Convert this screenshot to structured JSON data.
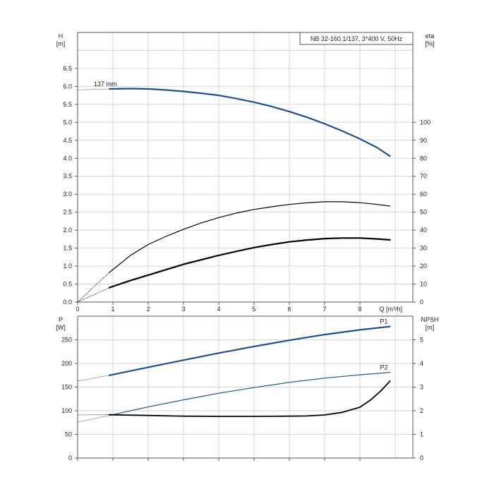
{
  "chart_data": [
    {
      "type": "line",
      "title": "NB 32-160.1/137, 3*400 V, 50Hz",
      "xlabel": "Q [m³/h]",
      "ylabel": [
        "H",
        "[m]"
      ],
      "ylabel_right": [
        "eta",
        "[%]"
      ],
      "xlim": [
        0,
        9.5
      ],
      "ylim": [
        0,
        7.5
      ],
      "ylim_right": [
        0,
        150
      ],
      "x_ticks": [
        "0",
        "1",
        "2",
        "3",
        "4",
        "5",
        "6",
        "7",
        "8"
      ],
      "y_ticks": [
        "0.0",
        "0.5",
        "1.0",
        "1.5",
        "2.0",
        "2.5",
        "3.0",
        "3.5",
        "4.0",
        "4.5",
        "5.0",
        "5.5",
        "6.0",
        "6.5"
      ],
      "y_right_ticks": [
        "0",
        "10",
        "20",
        "30",
        "40",
        "50",
        "60",
        "70",
        "80",
        "90",
        "100"
      ],
      "grid": true,
      "series": [
        {
          "name": "137 mm",
          "axis": "left",
          "color": "#1d4f8c",
          "extension_x": [
            0,
            0.9
          ],
          "extension_y": [
            5.9,
            5.93
          ],
          "x": [
            0.9,
            1.5,
            2.0,
            2.5,
            3.0,
            3.5,
            4.0,
            4.5,
            5.0,
            5.5,
            6.0,
            6.5,
            7.0,
            7.5,
            8.0,
            8.5,
            8.85
          ],
          "y": [
            5.93,
            5.94,
            5.93,
            5.9,
            5.86,
            5.81,
            5.75,
            5.66,
            5.56,
            5.44,
            5.3,
            5.14,
            4.96,
            4.76,
            4.54,
            4.29,
            4.06
          ]
        },
        {
          "axis": "right",
          "color": "#000000",
          "extension_x": [
            0,
            0.9
          ],
          "extension_y": [
            0,
            16.5
          ],
          "x": [
            0.9,
            1.5,
            2.0,
            2.5,
            3.0,
            3.5,
            4.0,
            4.5,
            5.0,
            5.5,
            6.0,
            6.5,
            7.0,
            7.5,
            8.0,
            8.5,
            8.85
          ],
          "y": [
            16.5,
            26,
            32,
            36.5,
            40.5,
            44,
            47,
            49.5,
            51.5,
            53,
            54.3,
            55.2,
            55.8,
            55.8,
            55.3,
            54.3,
            53.4
          ]
        },
        {
          "axis": "right",
          "color": "#000000",
          "extension_x": [
            0,
            0.9
          ],
          "extension_y": [
            0,
            8
          ],
          "x": [
            0.9,
            1.5,
            2.0,
            2.5,
            3.0,
            3.5,
            4.0,
            4.5,
            5.0,
            5.5,
            6.0,
            6.5,
            7.0,
            7.5,
            8.0,
            8.5,
            8.85
          ],
          "y": [
            8,
            12,
            15,
            18,
            21,
            23.5,
            26,
            28.2,
            30.3,
            32,
            33.5,
            34.5,
            35.3,
            35.6,
            35.6,
            35.1,
            34.6
          ]
        }
      ]
    },
    {
      "type": "line",
      "xlim": [
        0,
        9.5
      ],
      "ylim": [
        0,
        300
      ],
      "ylim_right": [
        0,
        6
      ],
      "ylabel": [
        "P",
        "[W]"
      ],
      "ylabel_right": [
        "NPSH",
        "[m]"
      ],
      "y_ticks": [
        "0",
        "50",
        "100",
        "150",
        "200",
        "250"
      ],
      "y_right_ticks": [
        "0",
        "1",
        "2",
        "3",
        "4",
        "5"
      ],
      "grid": true,
      "series": [
        {
          "name": "P1",
          "axis": "left",
          "color": "#1d4f8c",
          "extension_x": [
            0,
            0.9
          ],
          "extension_y": [
            163,
            175
          ],
          "x": [
            0.9,
            2.0,
            3.0,
            4.0,
            5.0,
            6.0,
            7.0,
            8.0,
            8.85
          ],
          "y": [
            175,
            192,
            207,
            222,
            236,
            249,
            261,
            271,
            278
          ]
        },
        {
          "name": "P2",
          "axis": "left",
          "color": "#1d4f8c",
          "extension_x": [
            0,
            0.9
          ],
          "extension_y": [
            76,
            90
          ],
          "x": [
            0.9,
            2.0,
            3.0,
            4.0,
            5.0,
            6.0,
            7.0,
            8.0,
            8.85
          ],
          "y": [
            90,
            108,
            123,
            137,
            149,
            160,
            169,
            176,
            181
          ]
        },
        {
          "name": "NPSH",
          "axis": "right",
          "color": "#000000",
          "extension_x": [
            0,
            0.9
          ],
          "extension_y": [
            1.82,
            1.83
          ],
          "x": [
            0.9,
            2.0,
            3.0,
            4.0,
            5.0,
            6.0,
            6.5,
            7.0,
            7.5,
            8.0,
            8.3,
            8.6,
            8.85
          ],
          "y": [
            1.83,
            1.8,
            1.77,
            1.76,
            1.76,
            1.77,
            1.78,
            1.82,
            1.93,
            2.15,
            2.45,
            2.85,
            3.25
          ]
        }
      ]
    }
  ]
}
